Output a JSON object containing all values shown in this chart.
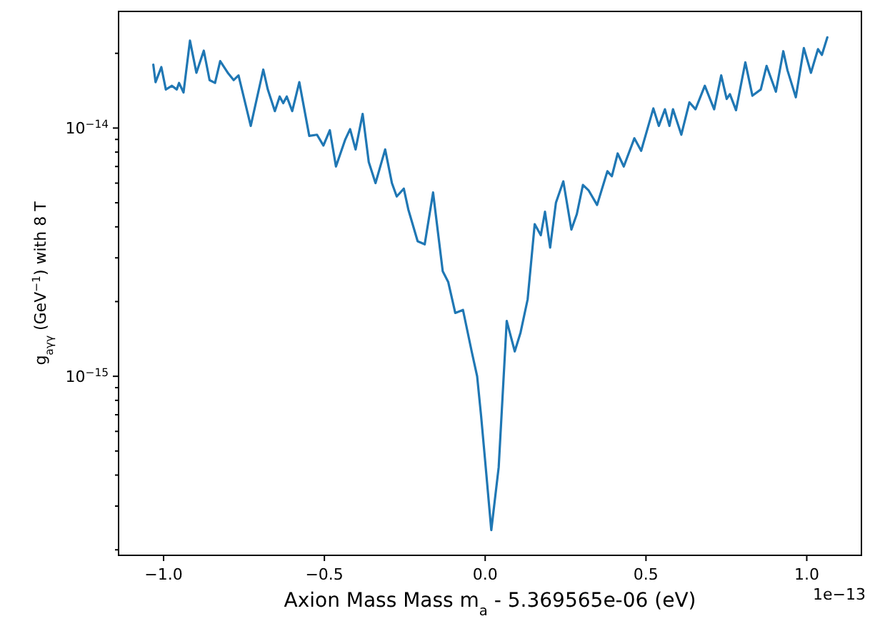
{
  "chart_data": {
    "type": "line",
    "xlabel": "Axion Mass Mass m$_{a}$ - 5.369565e-06 (eV)",
    "ylabel": "g$_{aγγ}$ (GeV$^{−1}$) with 8 T",
    "log": "y",
    "color": "#1f77b4",
    "line_style": "solid",
    "marker": "none",
    "grid": false,
    "xlim": [
      -1.14,
      1.17
    ],
    "ylim": [
      1.9e-16,
      2.95e-14
    ],
    "xticks": [
      {
        "value": -1,
        "label": "−1.0"
      },
      {
        "value": -0.5,
        "label": "−0.5"
      },
      {
        "value": 0,
        "label": "0.0"
      },
      {
        "value": 0.5,
        "label": "0.5"
      },
      {
        "value": 1,
        "label": "1.0"
      }
    ],
    "yticks": [
      {
        "value": 2e-16,
        "label": null
      },
      {
        "value": 3e-16,
        "label": null
      },
      {
        "value": 4e-16,
        "label": null
      },
      {
        "value": 5e-16,
        "label": null
      },
      {
        "value": 6e-16,
        "label": null
      },
      {
        "value": 7e-16,
        "label": null
      },
      {
        "value": 8e-16,
        "label": null
      },
      {
        "value": 9e-16,
        "label": null
      },
      {
        "value": 1e-15,
        "label": "10$^{−15}$"
      },
      {
        "value": 2e-15,
        "label": null
      },
      {
        "value": 3e-15,
        "label": null
      },
      {
        "value": 4e-15,
        "label": null
      },
      {
        "value": 5e-15,
        "label": null
      },
      {
        "value": 6e-15,
        "label": null
      },
      {
        "value": 7e-15,
        "label": null
      },
      {
        "value": 8e-15,
        "label": null
      },
      {
        "value": 9e-15,
        "label": null
      },
      {
        "value": 1e-14,
        "label": "10$^{−14}$"
      },
      {
        "value": 2e-14,
        "label": null
      }
    ],
    "annotations": [
      "1e−13"
    ],
    "x": [
      -1.032,
      -1.025,
      -1.007,
      -0.993,
      -0.974,
      -0.959,
      -0.952,
      -0.938,
      -0.918,
      -0.898,
      -0.875,
      -0.857,
      -0.84,
      -0.824,
      -0.799,
      -0.782,
      -0.767,
      -0.729,
      -0.69,
      -0.676,
      -0.654,
      -0.639,
      -0.628,
      -0.617,
      -0.6,
      -0.578,
      -0.547,
      -0.523,
      -0.503,
      -0.483,
      -0.464,
      -0.435,
      -0.42,
      -0.403,
      -0.381,
      -0.362,
      -0.341,
      -0.311,
      -0.29,
      -0.275,
      -0.253,
      -0.239,
      -0.21,
      -0.188,
      -0.162,
      -0.132,
      -0.115,
      -0.093,
      -0.069,
      -0.042,
      -0.025,
      -0.013,
      0.001,
      0.019,
      0.042,
      0.067,
      0.092,
      0.11,
      0.132,
      0.154,
      0.173,
      0.186,
      0.202,
      0.22,
      0.243,
      0.268,
      0.285,
      0.304,
      0.322,
      0.348,
      0.38,
      0.394,
      0.412,
      0.431,
      0.464,
      0.485,
      0.523,
      0.54,
      0.559,
      0.573,
      0.584,
      0.61,
      0.635,
      0.654,
      0.683,
      0.712,
      0.734,
      0.751,
      0.761,
      0.78,
      0.809,
      0.831,
      0.857,
      0.875,
      0.904,
      0.927,
      0.94,
      0.966,
      0.991,
      1.013,
      1.035,
      1.047,
      1.064
    ],
    "values": [
      1.8e-14,
      1.53e-14,
      1.76e-14,
      1.43e-14,
      1.48e-14,
      1.43e-14,
      1.52e-14,
      1.39e-14,
      2.25e-14,
      1.67e-14,
      2.05e-14,
      1.56e-14,
      1.52e-14,
      1.86e-14,
      1.66e-14,
      1.56e-14,
      1.63e-14,
      1.02e-14,
      1.72e-14,
      1.43e-14,
      1.17e-14,
      1.34e-14,
      1.26e-14,
      1.34e-14,
      1.17e-14,
      1.53e-14,
      9.3e-15,
      9.4e-15,
      8.5e-15,
      9.8e-15,
      7e-15,
      9e-15,
      9.9e-15,
      8.2e-15,
      1.14e-14,
      7.3e-15,
      6e-15,
      8.2e-15,
      6e-15,
      5.3e-15,
      5.7e-15,
      4.7e-15,
      3.5e-15,
      3.4e-15,
      5.5e-15,
      2.65e-15,
      2.4e-15,
      1.8e-15,
      1.85e-15,
      1.26e-15,
      1e-15,
      7e-16,
      4.4e-16,
      2.4e-16,
      4.3e-16,
      1.67e-15,
      1.26e-15,
      1.5e-15,
      2.04e-15,
      4.1e-15,
      3.7e-15,
      4.6e-15,
      3.3e-15,
      5e-15,
      6.1e-15,
      3.9e-15,
      4.5e-15,
      5.9e-15,
      5.6e-15,
      4.9e-15,
      6.7e-15,
      6.4e-15,
      7.9e-15,
      7e-15,
      9.1e-15,
      8.1e-15,
      1.2e-14,
      1.02e-14,
      1.19e-14,
      1.02e-14,
      1.19e-14,
      9.4e-15,
      1.27e-14,
      1.19e-14,
      1.48e-14,
      1.19e-14,
      1.63e-14,
      1.31e-14,
      1.37e-14,
      1.18e-14,
      1.84e-14,
      1.35e-14,
      1.43e-14,
      1.78e-14,
      1.4e-14,
      2.04e-14,
      1.71e-14,
      1.33e-14,
      2.1e-14,
      1.67e-14,
      2.08e-14,
      1.97e-14,
      2.32e-14
    ]
  }
}
